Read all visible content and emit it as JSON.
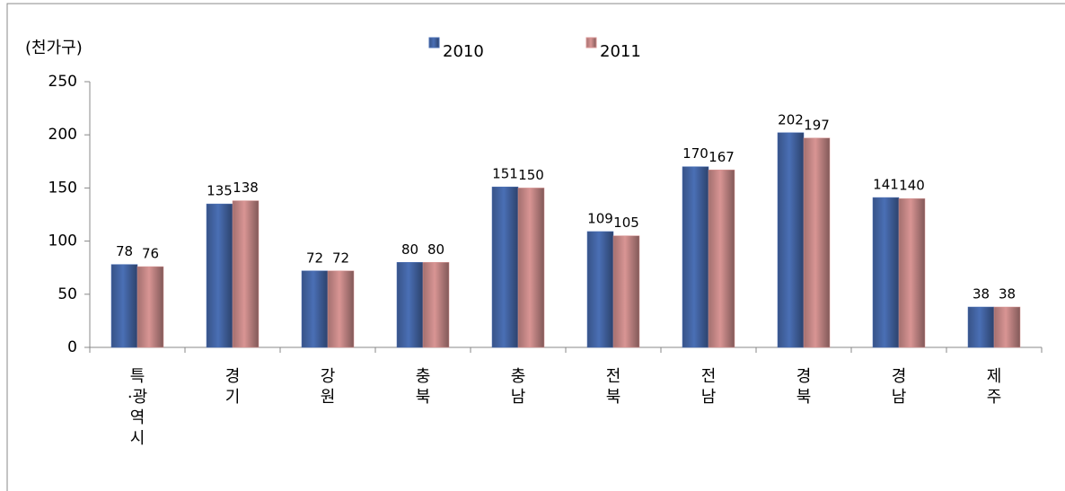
{
  "chart_data": {
    "type": "bar",
    "y_label": "(천가구)",
    "categories": [
      "특·광역시",
      "경기",
      "강원",
      "충북",
      "충남",
      "전북",
      "전남",
      "경북",
      "경남",
      "제주"
    ],
    "series": [
      {
        "name": "2010",
        "color": "#4a6fb5",
        "values": [
          78,
          135,
          72,
          80,
          151,
          109,
          170,
          202,
          141,
          38
        ]
      },
      {
        "name": "2011",
        "color": "#d99594",
        "values": [
          76,
          138,
          72,
          80,
          150,
          105,
          167,
          197,
          140,
          38
        ]
      }
    ],
    "ylim": [
      0,
      250
    ],
    "yticks": [
      0,
      50,
      100,
      150,
      200,
      250
    ],
    "grid": false,
    "legend": "top"
  }
}
